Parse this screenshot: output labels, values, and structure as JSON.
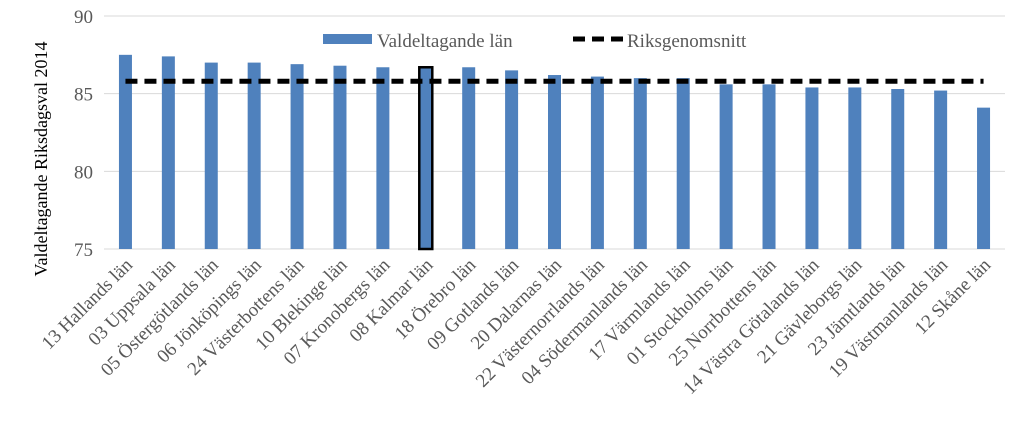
{
  "chart_data": {
    "type": "bar",
    "title": "",
    "xlabel": "",
    "ylabel": "Valdeltagande Riksdagsval 2014",
    "ylim": [
      75,
      90
    ],
    "yticks": [
      75,
      80,
      85,
      90
    ],
    "grid": true,
    "legend_position": "top-center",
    "categories": [
      "13 Hallands län",
      "03 Uppsala län",
      "05 Östergötlands län",
      "06 Jönköpings län",
      "24 Västerbottens län",
      "10 Blekinge län",
      "07 Kronobergs län",
      "08 Kalmar län",
      "18 Örebro län",
      "09 Gotlands län",
      "20 Dalarnas län",
      "22 Västernorrlands län",
      "04 Södermanlands län",
      "17 Värmlands län",
      "01 Stockholms län",
      "25 Norrbottens län",
      "14 Västra Götalands län",
      "21 Gävleborgs län",
      "23 Jämtlands län",
      "19 Västmanlands län",
      "12 Skåne län"
    ],
    "series": [
      {
        "name": "Valdeltagande län",
        "type": "bar",
        "color": "#4f81bd",
        "values": [
          87.5,
          87.4,
          87.0,
          87.0,
          86.9,
          86.8,
          86.7,
          86.7,
          86.7,
          86.5,
          86.2,
          86.1,
          86.0,
          86.0,
          85.6,
          85.6,
          85.4,
          85.4,
          85.3,
          85.2,
          84.1
        ]
      },
      {
        "name": "Riksgenomsnitt",
        "type": "dashed-line",
        "color": "#000000",
        "value": 85.8
      }
    ],
    "highlighted_category": "08 Kalmar län",
    "highlight_outline_color": "#000000"
  }
}
